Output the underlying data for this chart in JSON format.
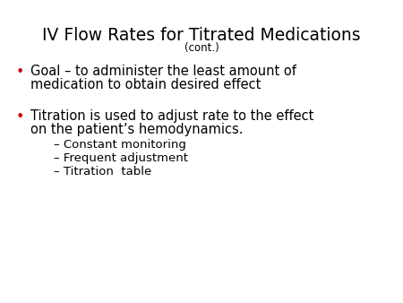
{
  "title_line1": "IV Flow Rates for Titrated Medications",
  "title_line2": "(cont.)",
  "background_color": "#ffffff",
  "text_color": "#000000",
  "bullet_color": "#cc0000",
  "title_fontsize": 13.5,
  "subtitle_fontsize": 8.5,
  "bullet_fontsize": 10.5,
  "sub_bullet_fontsize": 9.5,
  "bullet1_line1": "Goal – to administer the least amount of",
  "bullet1_line2": "medication to obtain desired effect",
  "bullet2_line1": "Titration is used to adjust rate to the effect",
  "bullet2_line2": "on the patient’s hemodynamics.",
  "sub_bullets": [
    "– Constant monitoring",
    "– Frequent adjustment",
    "– Titration  table"
  ],
  "figwidth": 4.5,
  "figheight": 3.38,
  "dpi": 100
}
